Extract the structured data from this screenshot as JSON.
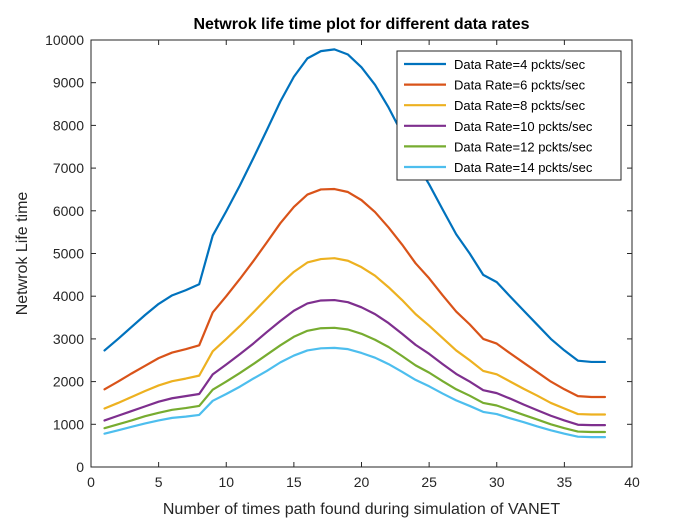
{
  "chart_data": {
    "type": "line",
    "title": "Netwrok life time plot for different data rates",
    "xlabel": "Number of times path found during simulation of VANET",
    "ylabel": "Netwrok Life time",
    "xlim": [
      0,
      40
    ],
    "ylim": [
      0,
      10000
    ],
    "xticks": [
      0,
      5,
      10,
      15,
      20,
      25,
      30,
      35,
      40
    ],
    "yticks": [
      0,
      1000,
      2000,
      3000,
      4000,
      5000,
      6000,
      7000,
      8000,
      9000,
      10000
    ],
    "grid": false,
    "legend_position": "top-right",
    "x": [
      1,
      2,
      3,
      4,
      5,
      6,
      7,
      8,
      9,
      10,
      11,
      12,
      13,
      14,
      15,
      16,
      17,
      18,
      19,
      20,
      21,
      22,
      23,
      24,
      25,
      26,
      27,
      28,
      29,
      30,
      31,
      32,
      33,
      34,
      35,
      36,
      37,
      38
    ],
    "series": [
      {
        "name": "Data Rate=4 pckts/sec",
        "color": "#0072BD",
        "values": [
          2730,
          3000,
          3280,
          3560,
          3820,
          4020,
          4140,
          4280,
          5420,
          5990,
          6590,
          7230,
          7890,
          8560,
          9140,
          9570,
          9740,
          9780,
          9660,
          9360,
          8950,
          8420,
          7810,
          7150,
          6620,
          6030,
          5450,
          5000,
          4500,
          4330,
          3990,
          3660,
          3330,
          3000,
          2730,
          2490,
          2460,
          2460
        ]
      },
      {
        "name": "Data Rate=6 pckts/sec",
        "color": "#D95319",
        "values": [
          1820,
          2000,
          2190,
          2370,
          2550,
          2680,
          2760,
          2850,
          3620,
          4000,
          4400,
          4820,
          5260,
          5710,
          6090,
          6380,
          6500,
          6510,
          6440,
          6250,
          5970,
          5610,
          5210,
          4770,
          4420,
          4020,
          3640,
          3340,
          3000,
          2890,
          2660,
          2440,
          2220,
          2000,
          1820,
          1660,
          1640,
          1640
        ]
      },
      {
        "name": "Data Rate=8 pckts/sec",
        "color": "#EDB120",
        "values": [
          1370,
          1500,
          1640,
          1780,
          1910,
          2010,
          2070,
          2140,
          2710,
          3000,
          3300,
          3620,
          3950,
          4280,
          4570,
          4790,
          4870,
          4890,
          4830,
          4680,
          4480,
          4210,
          3910,
          3580,
          3310,
          3020,
          2730,
          2500,
          2250,
          2170,
          2000,
          1830,
          1670,
          1500,
          1370,
          1240,
          1230,
          1230
        ]
      },
      {
        "name": "Data Rate=10 pckts/sec",
        "color": "#7E2F8E",
        "values": [
          1090,
          1200,
          1310,
          1420,
          1530,
          1610,
          1660,
          1710,
          2170,
          2400,
          2640,
          2890,
          3160,
          3420,
          3660,
          3830,
          3900,
          3910,
          3860,
          3740,
          3580,
          3370,
          3120,
          2860,
          2650,
          2410,
          2180,
          2000,
          1800,
          1730,
          1600,
          1460,
          1330,
          1200,
          1090,
          990,
          980,
          980
        ]
      },
      {
        "name": "Data Rate=12 pckts/sec",
        "color": "#77AC30",
        "values": [
          910,
          1000,
          1090,
          1190,
          1270,
          1340,
          1380,
          1430,
          1810,
          2000,
          2200,
          2410,
          2630,
          2850,
          3050,
          3190,
          3250,
          3260,
          3220,
          3120,
          2980,
          2810,
          2600,
          2380,
          2210,
          2010,
          1820,
          1670,
          1500,
          1440,
          1330,
          1220,
          1110,
          1000,
          910,
          830,
          820,
          820
        ]
      },
      {
        "name": "Data Rate=14 pckts/sec",
        "color": "#4DBEEE",
        "values": [
          780,
          860,
          940,
          1020,
          1090,
          1150,
          1180,
          1220,
          1550,
          1710,
          1880,
          2070,
          2250,
          2450,
          2610,
          2730,
          2780,
          2790,
          2760,
          2670,
          2560,
          2410,
          2230,
          2040,
          1890,
          1720,
          1560,
          1430,
          1290,
          1240,
          1140,
          1050,
          950,
          860,
          780,
          710,
          700,
          700
        ]
      }
    ]
  }
}
